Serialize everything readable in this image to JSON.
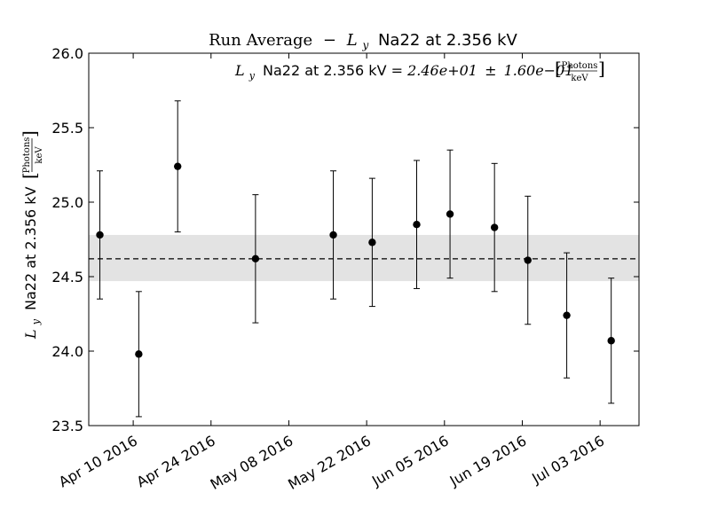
{
  "chart_data": {
    "type": "scatter",
    "title_prefix": "Run Average",
    "title_dash": "−",
    "title_symbol": "L",
    "title_subscript": "y",
    "title_suffix": "Na22 at 2.356 kV",
    "annotation": {
      "symbol": "L",
      "subscript": "y",
      "text": "Na22 at 2.356 kV",
      "equals": "=",
      "value": "2.46e+01",
      "pm": "±",
      "error": "1.60e−01",
      "unit_num": "Photons",
      "unit_den": "keV"
    },
    "ylabel": {
      "symbol": "L",
      "subscript": "y",
      "text": "Na22 at 2.356 kV",
      "unit_num": "Photons",
      "unit_den": "keV"
    },
    "x_tick_labels": [
      "Apr 10 2016",
      "Apr 24 2016",
      "May 08 2016",
      "May 22 2016",
      "Jun 05 2016",
      "Jun 19 2016",
      "Jul 03 2016"
    ],
    "x_tick_dates": [
      "2016-04-10",
      "2016-04-24",
      "2016-05-08",
      "2016-05-22",
      "2016-06-05",
      "2016-06-19",
      "2016-07-03"
    ],
    "y_tick_labels": [
      "23.5",
      "24.0",
      "24.5",
      "25.0",
      "25.5",
      "26.0"
    ],
    "xlim": [
      "2016-04-02",
      "2016-07-10"
    ],
    "ylim": [
      23.5,
      26.0
    ],
    "mean": 24.62,
    "band": [
      24.47,
      24.78
    ],
    "points": [
      {
        "date": "2016-04-04",
        "y": 24.78,
        "err": 0.43
      },
      {
        "date": "2016-04-11",
        "y": 23.98,
        "err": 0.42
      },
      {
        "date": "2016-04-18",
        "y": 25.24,
        "err": 0.44
      },
      {
        "date": "2016-05-02",
        "y": 24.62,
        "err": 0.43
      },
      {
        "date": "2016-05-16",
        "y": 24.78,
        "err": 0.43
      },
      {
        "date": "2016-05-23",
        "y": 24.73,
        "err": 0.43
      },
      {
        "date": "2016-05-31",
        "y": 24.85,
        "err": 0.43
      },
      {
        "date": "2016-06-06",
        "y": 24.92,
        "err": 0.43
      },
      {
        "date": "2016-06-14",
        "y": 24.83,
        "err": 0.43
      },
      {
        "date": "2016-06-20",
        "y": 24.61,
        "err": 0.43
      },
      {
        "date": "2016-06-27",
        "y": 24.24,
        "err": 0.42
      },
      {
        "date": "2016-07-05",
        "y": 24.07,
        "err": 0.42
      }
    ],
    "colors": {
      "band": "#e3e3e3",
      "marker": "#000000",
      "mean_line": "#000000"
    },
    "grid": false
  }
}
